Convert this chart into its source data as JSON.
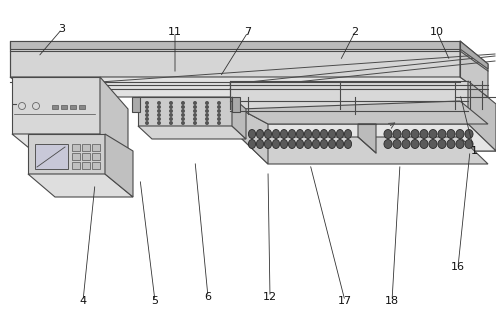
{
  "bg_color": "#ffffff",
  "line_color": "#4a4a4a",
  "line_width": 0.8,
  "figsize": [
    4.96,
    3.19
  ],
  "dpi": 100,
  "labels": [
    [
      "4",
      83,
      18
    ],
    [
      "5",
      155,
      18
    ],
    [
      "6",
      208,
      22
    ],
    [
      "12",
      270,
      18
    ],
    [
      "17",
      345,
      18
    ],
    [
      "18",
      392,
      18
    ],
    [
      "16",
      458,
      52
    ],
    [
      "1",
      470,
      168
    ],
    [
      "2",
      355,
      285
    ],
    [
      "3",
      62,
      290
    ],
    [
      "7",
      248,
      285
    ],
    [
      "10",
      437,
      285
    ],
    [
      "11",
      175,
      285
    ]
  ]
}
